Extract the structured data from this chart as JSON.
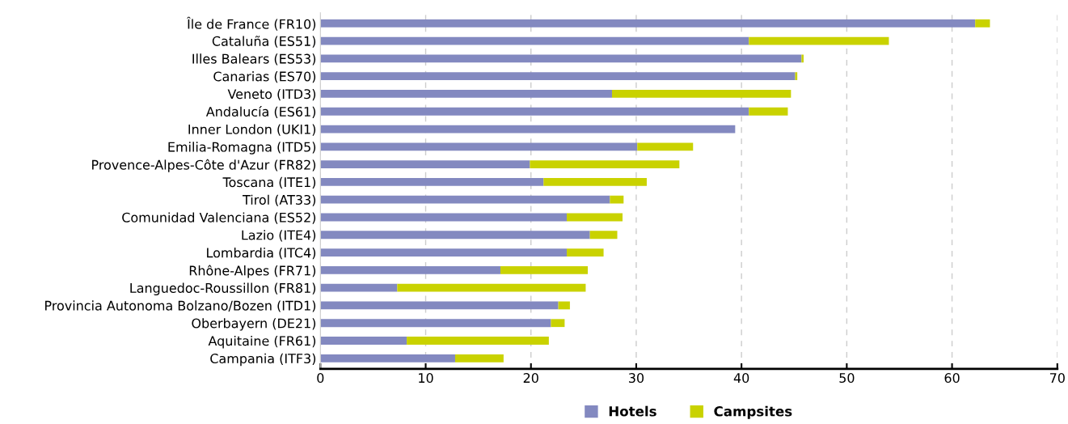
{
  "chart_data": {
    "type": "bar",
    "orientation": "horizontal",
    "stacked": true,
    "categories": [
      "Île de France (FR10)",
      "Cataluña (ES51)",
      "Illes Balears (ES53)",
      "Canarias (ES70)",
      "Veneto (ITD3)",
      "Andalucía (ES61)",
      "Inner London (UKI1)",
      "Emilia-Romagna (ITD5)",
      "Provence-Alpes-Côte d'Azur (FR82)",
      "Toscana (ITE1)",
      "Tirol (AT33)",
      "Comunidad Valenciana (ES52)",
      "Lazio (ITE4)",
      "Lombardia (ITC4)",
      "Rhône-Alpes (FR71)",
      "Languedoc-Roussillon (FR81)",
      "Provincia Autonoma Bolzano/Bozen (ITD1)",
      "Oberbayern (DE21)",
      "Aquitaine (FR61)",
      "Campania (ITF3)"
    ],
    "series": [
      {
        "name": "Hotels",
        "color": "#8389c0",
        "values": [
          62.2,
          40.7,
          45.7,
          45.1,
          27.7,
          40.7,
          39.4,
          30.1,
          19.9,
          21.2,
          27.5,
          23.4,
          25.6,
          23.4,
          17.1,
          7.3,
          22.6,
          21.9,
          8.2,
          12.8
        ]
      },
      {
        "name": "Campsites",
        "color": "#c9d200",
        "values": [
          1.4,
          13.3,
          0.2,
          0.2,
          17.0,
          3.7,
          0,
          5.3,
          14.2,
          9.8,
          1.3,
          5.3,
          2.6,
          3.5,
          8.3,
          17.9,
          1.1,
          1.3,
          13.5,
          4.6
        ]
      }
    ],
    "xlim": [
      0,
      70
    ],
    "xticks": [
      0,
      10,
      20,
      30,
      40,
      50,
      60,
      70
    ],
    "grid": "x",
    "legend": "bottom"
  }
}
